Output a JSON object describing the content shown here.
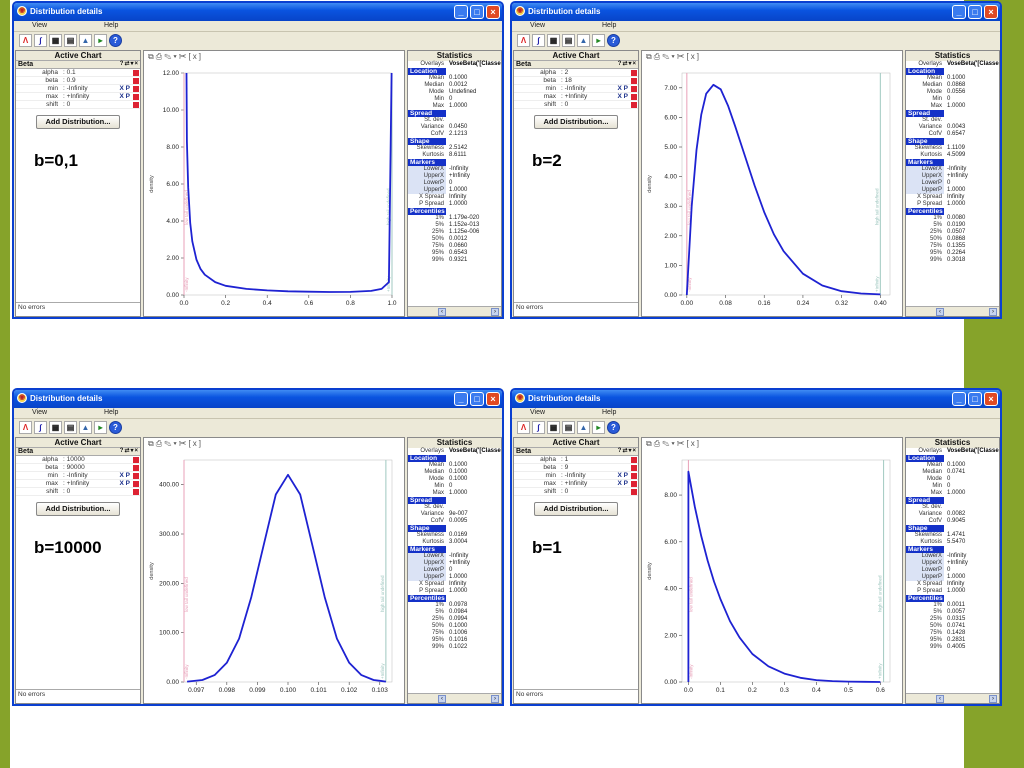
{
  "theme": {
    "green": "#86A32A",
    "blue": "#1E22D2",
    "accent": "#1431C8"
  },
  "window": {
    "title": "Distribution details",
    "menu": [
      "View",
      "Help"
    ],
    "active_chart": "Active Chart",
    "dist_name": "Beta",
    "add_button": "Add Distribution...",
    "no_errors": "No errors",
    "stats_title": "Statistics",
    "overlays_label": "Overlays",
    "overlays_value": "VoseBeta('[Classe",
    "x_axis_label": "",
    "y_axis_label": "density",
    "low_marker": "low tail undefined",
    "high_marker": "high tail undefined",
    "infinity_marker": "-Infinity",
    "infinity_marker_pos": "+Infinity"
  },
  "panels": [
    {
      "b_label": "b=0,1",
      "params": [
        {
          "name": "alpha",
          "value": "0.1"
        },
        {
          "name": "beta",
          "value": "0.9"
        },
        {
          "name": "min",
          "value": "-Infinity",
          "xp": "X P"
        },
        {
          "name": "max",
          "value": "+Infinity",
          "xp": "X P"
        },
        {
          "name": "shift",
          "value": "0"
        }
      ],
      "stats": {
        "Mean": "0.1000",
        "Median": "0.0012",
        "Mode": "Undefined",
        "Min": "0",
        "Max": "1.0000",
        "St. dev.": "0.2121",
        "Variance": "0.0450",
        "CofV": "2.1213",
        "Skewness": "2.5142",
        "Kurtosis": "8.6111",
        "LowerX": "-Infinity",
        "UpperX": "+Infinity",
        "LowerP": "0",
        "UpperP": "1.0000",
        "X Spread": "Infinity",
        "P Spread": "1.0000",
        "1%": "1.179e-020",
        "5%": "1.152e-013",
        "25%": "1.125e-006",
        "50%": "0.0012",
        "75%": "0.0660",
        "95%": "0.6543",
        "99%": "0.9321"
      },
      "chart_data": {
        "type": "line",
        "xlim": [
          0,
          1.0
        ],
        "ylim": [
          0,
          12.0
        ],
        "x_ticks": [
          "0.0",
          "0.2",
          "0.4",
          "0.6",
          "0.8",
          "1.0"
        ],
        "y_ticks": [
          "0.00",
          "2.00",
          "4.00",
          "6.00",
          "8.00",
          "10.00",
          "12.00"
        ],
        "x": [
          0.012,
          0.014,
          0.02,
          0.03,
          0.04,
          0.06,
          0.08,
          0.1,
          0.15,
          0.2,
          0.3,
          0.4,
          0.5,
          0.6,
          0.7,
          0.8,
          0.9,
          0.95,
          0.985,
          0.998
        ],
        "y": [
          12.0,
          8.3,
          5.8,
          3.9,
          2.9,
          1.9,
          1.4,
          1.1,
          0.7,
          0.5,
          0.33,
          0.25,
          0.2,
          0.18,
          0.16,
          0.17,
          0.22,
          0.33,
          0.7,
          12.0
        ],
        "vlines": [
          0.0,
          1.0
        ]
      }
    },
    {
      "b_label": "b=2",
      "params": [
        {
          "name": "alpha",
          "value": "2"
        },
        {
          "name": "beta",
          "value": "18"
        },
        {
          "name": "min",
          "value": "-Infinity",
          "xp": "X P"
        },
        {
          "name": "max",
          "value": "+Infinity",
          "xp": "X P"
        },
        {
          "name": "shift",
          "value": "0"
        }
      ],
      "stats": {
        "Mean": "0.1000",
        "Median": "0.0868",
        "Mode": "0.0556",
        "Min": "0",
        "Max": "1.0000",
        "St. dev.": "0.0655",
        "Variance": "0.0043",
        "CofV": "0.6547",
        "Skewness": "1.1109",
        "Kurtosis": "4.5099",
        "LowerX": "-Infinity",
        "UpperX": "+Infinity",
        "LowerP": "0",
        "UpperP": "1.0000",
        "X Spread": "Infinity",
        "P Spread": "1.0000",
        "1%": "0.0080",
        "5%": "0.0190",
        "25%": "0.0507",
        "50%": "0.0868",
        "75%": "0.1355",
        "95%": "0.2264",
        "99%": "0.3018"
      },
      "chart_data": {
        "type": "line",
        "xlim": [
          -0.01,
          0.42
        ],
        "ylim": [
          0,
          7.5
        ],
        "x_ticks": [
          "0.00",
          "0.08",
          "0.16",
          "0.24",
          "0.32",
          "0.40"
        ],
        "y_ticks": [
          "0.00",
          "1.00",
          "2.00",
          "3.00",
          "4.00",
          "5.00",
          "6.00",
          "7.00"
        ],
        "x": [
          0.0,
          0.01,
          0.02,
          0.03,
          0.04,
          0.055,
          0.07,
          0.085,
          0.1,
          0.12,
          0.14,
          0.16,
          0.18,
          0.2,
          0.24,
          0.28,
          0.32,
          0.36,
          0.4
        ],
        "y": [
          0.0,
          3.0,
          4.9,
          6.1,
          6.8,
          7.1,
          6.95,
          6.4,
          5.7,
          4.7,
          3.7,
          2.8,
          2.05,
          1.48,
          0.72,
          0.32,
          0.13,
          0.05,
          0.02
        ],
        "vlines": [
          0.0,
          0.4
        ]
      }
    },
    {
      "b_label": "b=10000",
      "params": [
        {
          "name": "alpha",
          "value": "10000"
        },
        {
          "name": "beta",
          "value": "90000"
        },
        {
          "name": "min",
          "value": "-Infinity",
          "xp": "X P"
        },
        {
          "name": "max",
          "value": "+Infinity",
          "xp": "X P"
        },
        {
          "name": "shift",
          "value": "0"
        }
      ],
      "stats": {
        "Mean": "0.1000",
        "Median": "0.1000",
        "Mode": "0.1000",
        "Min": "0",
        "Max": "1.0000",
        "St. dev.": "0.0009",
        "Variance": "9e-007",
        "CofV": "0.0095",
        "Skewness": "0.0169",
        "Kurtosis": "3.0004",
        "LowerX": "-Infinity",
        "UpperX": "+Infinity",
        "LowerP": "0",
        "UpperP": "1.0000",
        "X Spread": "Infinity",
        "P Spread": "1.0000",
        "1%": "0.0978",
        "5%": "0.0984",
        "25%": "0.0994",
        "50%": "0.1000",
        "75%": "0.1006",
        "95%": "0.1016",
        "99%": "0.1022"
      },
      "chart_data": {
        "type": "line",
        "xlim": [
          0.0966,
          0.1034
        ],
        "ylim": [
          0,
          450
        ],
        "x_ticks": [
          "0.097",
          "0.098",
          "0.099",
          "0.100",
          "0.101",
          "0.102",
          "0.103"
        ],
        "y_ticks": [
          "0.00",
          "100.00",
          "200.00",
          "300.00",
          "400.00"
        ],
        "x": [
          0.0967,
          0.0972,
          0.0976,
          0.098,
          0.0984,
          0.0988,
          0.0992,
          0.0996,
          0.1,
          0.1004,
          0.1008,
          0.1012,
          0.1016,
          0.102,
          0.1024,
          0.1028,
          0.1032
        ],
        "y": [
          0.9,
          4,
          14,
          39,
          88,
          172,
          276,
          380,
          420,
          380,
          276,
          172,
          88,
          39,
          14,
          4,
          0.9
        ],
        "vlines": [
          0.0966,
          0.1032
        ]
      }
    },
    {
      "b_label": "b=1",
      "params": [
        {
          "name": "alpha",
          "value": "1"
        },
        {
          "name": "beta",
          "value": "9"
        },
        {
          "name": "min",
          "value": "-Infinity",
          "xp": "X P"
        },
        {
          "name": "max",
          "value": "+Infinity",
          "xp": "X P"
        },
        {
          "name": "shift",
          "value": "0"
        }
      ],
      "stats": {
        "Mean": "0.1000",
        "Median": "0.0741",
        "Mode": "0",
        "Min": "0",
        "Max": "1.0000",
        "St. dev.": "0.0905",
        "Variance": "0.0082",
        "CofV": "0.9045",
        "Skewness": "1.4741",
        "Kurtosis": "5.5470",
        "LowerX": "-Infinity",
        "UpperX": "+Infinity",
        "LowerP": "0",
        "UpperP": "1.0000",
        "X Spread": "Infinity",
        "P Spread": "1.0000",
        "1%": "0.0011",
        "5%": "0.0057",
        "25%": "0.0315",
        "50%": "0.0741",
        "75%": "0.1428",
        "95%": "0.2831",
        "99%": "0.4005"
      },
      "chart_data": {
        "type": "line",
        "xlim": [
          -0.02,
          0.63
        ],
        "ylim": [
          0,
          9.5
        ],
        "x_ticks": [
          "0.0",
          "0.1",
          "0.2",
          "0.3",
          "0.4",
          "0.5",
          "0.6"
        ],
        "y_ticks": [
          "0.00",
          "2.00",
          "4.00",
          "6.00",
          "8.00"
        ],
        "x": [
          0.0,
          0.0,
          0.02,
          0.04,
          0.06,
          0.08,
          0.1,
          0.13,
          0.16,
          0.2,
          0.25,
          0.3,
          0.35,
          0.4,
          0.45,
          0.5,
          0.55,
          0.6
        ],
        "y": [
          0.0,
          9.0,
          7.5,
          6.25,
          5.2,
          4.3,
          3.55,
          2.6,
          1.9,
          1.2,
          0.67,
          0.36,
          0.18,
          0.08,
          0.04,
          0.017,
          0.007,
          0.002
        ],
        "vlines": [
          0.0,
          0.61
        ]
      }
    }
  ]
}
